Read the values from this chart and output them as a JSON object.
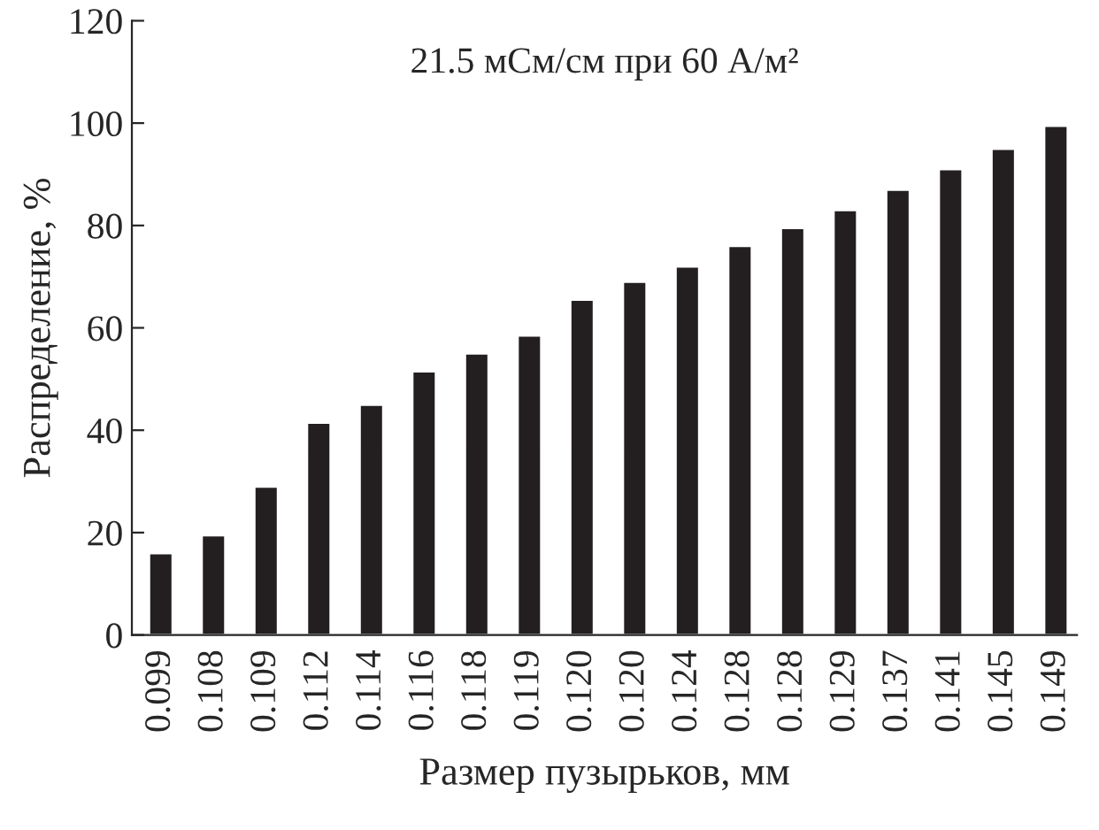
{
  "chart_data": {
    "type": "bar",
    "title": "21.5 мСм/см при 60 А/м²",
    "xlabel": "Размер пузырьков, мм",
    "ylabel": "Распределение, %",
    "categories": [
      "0.099",
      "0.108",
      "0.109",
      "0.112",
      "0.114",
      "0.116",
      "0.118",
      "0.119",
      "0.120",
      "0.120",
      "0.124",
      "0.128",
      "0.128",
      "0.129",
      "0.137",
      "0.141",
      "0.145",
      "0.149"
    ],
    "values": [
      16,
      19.5,
      29,
      41.5,
      45,
      51.5,
      55,
      58.5,
      65.5,
      69,
      72,
      76,
      79.5,
      83,
      87,
      91,
      95,
      99.5
    ],
    "color": "#231f20",
    "ylim": [
      0,
      120
    ],
    "yticks": [
      0,
      20,
      40,
      60,
      80,
      100,
      120
    ],
    "grid": false
  }
}
